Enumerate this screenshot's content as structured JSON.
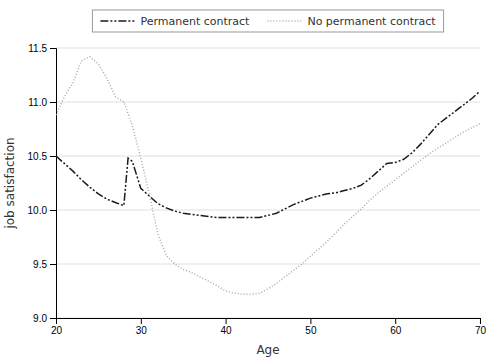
{
  "chart_data": {
    "type": "line",
    "xlabel": "Age",
    "ylabel": "job satisfaction",
    "xlim": [
      20,
      70
    ],
    "ylim": [
      9,
      11.5
    ],
    "xticks": [
      20,
      30,
      40,
      50,
      60,
      70
    ],
    "yticks": [
      {
        "value": 9,
        "label": "9.0"
      },
      9.5,
      {
        "value": 10,
        "label": "10.0"
      },
      10.5,
      {
        "value": 11,
        "label": "11.0"
      },
      11.5
    ],
    "grid": "y",
    "legend": "top",
    "series": [
      {
        "name": "Permanent contract",
        "color": "#1a1a1a",
        "line_style": "dashdot",
        "x": [
          20,
          21,
          22,
          23,
          24,
          25,
          26,
          27,
          28,
          28.5,
          29,
          30,
          31,
          32,
          33,
          34,
          35,
          36,
          37,
          38,
          39,
          40,
          41,
          42,
          43,
          44,
          45,
          46,
          47,
          48,
          49,
          50,
          51,
          52,
          53,
          54,
          55,
          56,
          57,
          58,
          59,
          60,
          61,
          62,
          63,
          64,
          65,
          66,
          67,
          68,
          69,
          70
        ],
        "values": [
          10.5,
          10.43,
          10.36,
          10.28,
          10.21,
          10.15,
          10.1,
          10.07,
          10.04,
          10.48,
          10.45,
          10.2,
          10.13,
          10.06,
          10.02,
          9.99,
          9.97,
          9.96,
          9.95,
          9.94,
          9.93,
          9.93,
          9.93,
          9.93,
          9.93,
          9.93,
          9.95,
          9.97,
          10.01,
          10.05,
          10.08,
          10.11,
          10.13,
          10.15,
          10.16,
          10.18,
          10.2,
          10.23,
          10.29,
          10.36,
          10.43,
          10.44,
          10.47,
          10.53,
          10.61,
          10.7,
          10.79,
          10.85,
          10.91,
          10.97,
          11.03,
          11.1
        ]
      },
      {
        "name": "No permanent contract",
        "color": "#aaaaaa",
        "line_style": "dotted",
        "x": [
          20,
          21,
          22,
          23,
          24,
          25,
          26,
          27,
          28,
          29,
          30,
          31,
          32,
          33,
          34,
          35,
          36,
          37,
          38,
          39,
          40,
          41,
          42,
          43,
          44,
          45,
          46,
          47,
          48,
          49,
          50,
          51,
          52,
          53,
          54,
          55,
          56,
          57,
          58,
          59,
          60,
          61,
          62,
          63,
          64,
          65,
          66,
          67,
          68,
          69,
          70
        ],
        "values": [
          10.88,
          11.05,
          11.18,
          11.38,
          11.42,
          11.35,
          11.22,
          11.05,
          11.0,
          10.78,
          10.48,
          10.15,
          9.78,
          9.58,
          9.5,
          9.45,
          9.42,
          9.38,
          9.34,
          9.3,
          9.25,
          9.23,
          9.22,
          9.22,
          9.23,
          9.27,
          9.32,
          9.38,
          9.44,
          9.5,
          9.57,
          9.64,
          9.71,
          9.79,
          9.87,
          9.94,
          10.01,
          10.09,
          10.16,
          10.22,
          10.28,
          10.34,
          10.4,
          10.46,
          10.52,
          10.57,
          10.62,
          10.67,
          10.72,
          10.76,
          10.8
        ]
      }
    ]
  }
}
